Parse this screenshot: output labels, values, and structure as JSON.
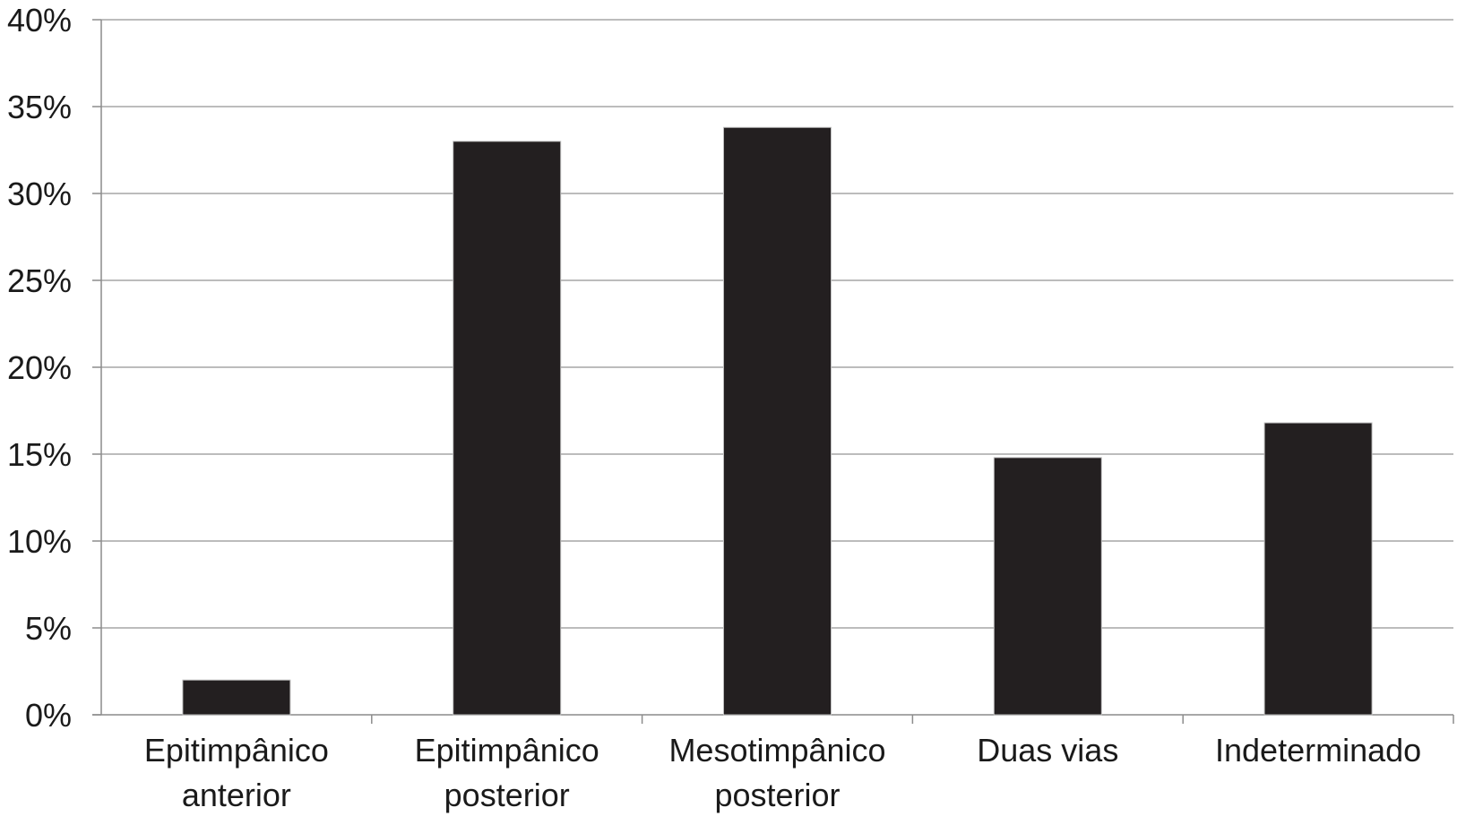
{
  "chart_data": {
    "type": "bar",
    "title": "",
    "xlabel": "",
    "ylabel": "",
    "categories": [
      [
        "Epitimpânico",
        "anterior"
      ],
      [
        "Epitimpânico",
        "posterior"
      ],
      [
        "Mesotimpânico",
        "posterior"
      ],
      [
        "Duas vias"
      ],
      [
        "Indeterminado"
      ]
    ],
    "values": [
      2,
      33,
      33.8,
      14.8,
      16.8
    ],
    "ylim": [
      0,
      40
    ],
    "yticks": [
      0,
      5,
      10,
      15,
      20,
      25,
      30,
      35,
      40
    ],
    "ytick_labels": [
      "0%",
      "5%",
      "10%",
      "15%",
      "20%",
      "25%",
      "30%",
      "35%",
      "40%"
    ],
    "grid": true,
    "legend": "none",
    "colors": {
      "bar": "#231f20",
      "grid": "#a6a6a6",
      "axis": "#8c8c8c"
    }
  }
}
